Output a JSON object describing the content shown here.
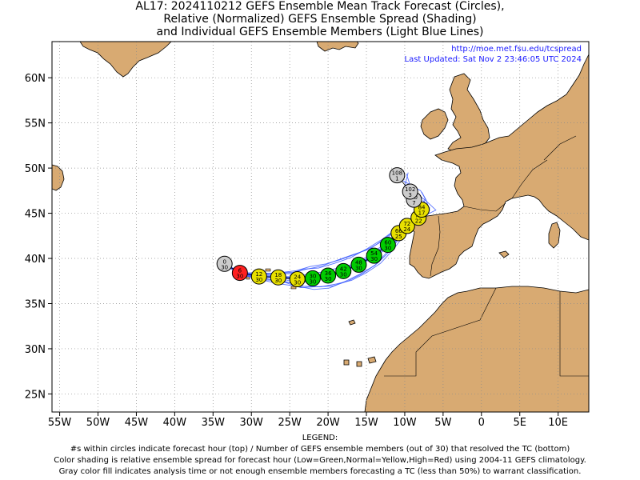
{
  "title": {
    "line1": "AL17: 2024110212 GEFS Ensemble Mean Track Forecast (Circles),",
    "line2": "Relative (Normalized) GEFS Ensemble Spread (Shading)",
    "line3": "and Individual GEFS Ensemble Members (Light Blue Lines)"
  },
  "credit": {
    "url": "http://moe.met.fsu.edu/tcspread",
    "updated": "Last Updated: Sat Nov 2 23:46:05 UTC 2024"
  },
  "axes": {
    "lon_range": [
      -56,
      14
    ],
    "lat_range": [
      23,
      64
    ],
    "lon_ticks": [
      {
        "v": -55,
        "label": "55W"
      },
      {
        "v": -50,
        "label": "50W"
      },
      {
        "v": -45,
        "label": "45W"
      },
      {
        "v": -40,
        "label": "40W"
      },
      {
        "v": -35,
        "label": "35W"
      },
      {
        "v": -30,
        "label": "30W"
      },
      {
        "v": -25,
        "label": "25W"
      },
      {
        "v": -20,
        "label": "20W"
      },
      {
        "v": -15,
        "label": "15W"
      },
      {
        "v": -10,
        "label": "10W"
      },
      {
        "v": -5,
        "label": "5W"
      },
      {
        "v": 0,
        "label": "0"
      },
      {
        "v": 5,
        "label": "5E"
      },
      {
        "v": 10,
        "label": "10E"
      }
    ],
    "lat_ticks": [
      {
        "v": 25,
        "label": "25N"
      },
      {
        "v": 30,
        "label": "30N"
      },
      {
        "v": 35,
        "label": "35N"
      },
      {
        "v": 40,
        "label": "40N"
      },
      {
        "v": 45,
        "label": "45N"
      },
      {
        "v": 50,
        "label": "50N"
      },
      {
        "v": 55,
        "label": "55N"
      },
      {
        "v": 60,
        "label": "60N"
      }
    ],
    "grid": true
  },
  "colors": {
    "ocean": "#ffffff",
    "land": "#d8aa72",
    "coast": "#000000",
    "member_track": "#3b5bff",
    "low_spread": "#00cc00",
    "normal_spread": "#e8e000",
    "high_spread": "#ff2020",
    "insufficient": "#cccccc",
    "grid": "#8a8a8a"
  },
  "track_points": [
    {
      "lon": -33.5,
      "lat": 39.4,
      "hour": "0",
      "members": "30",
      "cat": "gray"
    },
    {
      "lon": -31.5,
      "lat": 38.4,
      "hour": "6",
      "members": "30",
      "cat": "red"
    },
    {
      "lon": -29.0,
      "lat": 38.0,
      "hour": "12",
      "members": "30",
      "cat": "yellow"
    },
    {
      "lon": -26.5,
      "lat": 37.9,
      "hour": "18",
      "members": "30",
      "cat": "yellow"
    },
    {
      "lon": -24.0,
      "lat": 37.7,
      "hour": "24",
      "members": "30",
      "cat": "yellow"
    },
    {
      "lon": -22.0,
      "lat": 37.8,
      "hour": "30",
      "members": "30",
      "cat": "green"
    },
    {
      "lon": -20.0,
      "lat": 38.1,
      "hour": "36",
      "members": "30",
      "cat": "green"
    },
    {
      "lon": -18.0,
      "lat": 38.6,
      "hour": "42",
      "members": "30",
      "cat": "green"
    },
    {
      "lon": -16.0,
      "lat": 39.3,
      "hour": "48",
      "members": "30",
      "cat": "green"
    },
    {
      "lon": -14.0,
      "lat": 40.3,
      "hour": "54",
      "members": "30",
      "cat": "green"
    },
    {
      "lon": -12.2,
      "lat": 41.5,
      "hour": "60",
      "members": "30",
      "cat": "green"
    },
    {
      "lon": -10.8,
      "lat": 42.8,
      "hour": "66",
      "members": "25",
      "cat": "yellow"
    },
    {
      "lon": -9.7,
      "lat": 43.6,
      "hour": "72",
      "members": "24",
      "cat": "yellow"
    },
    {
      "lon": -8.2,
      "lat": 44.5,
      "hour": "78",
      "members": "22",
      "cat": "yellow"
    },
    {
      "lon": -7.8,
      "lat": 45.4,
      "hour": "84",
      "members": "17",
      "cat": "yellow"
    },
    {
      "lon": -8.8,
      "lat": 46.5,
      "hour": "90",
      "members": "7",
      "cat": "gray"
    },
    {
      "lon": -9.3,
      "lat": 47.4,
      "hour": "102",
      "members": "3",
      "cat": "gray"
    },
    {
      "lon": -11.0,
      "lat": 49.2,
      "hour": "108",
      "members": "1",
      "cat": "gray"
    }
  ],
  "legend": {
    "heading": "LEGEND:",
    "line1": "#s within circles indicate forecast hour (top) / Number of GEFS ensemble members (out of 30) that resolved the TC (bottom)",
    "line2": "Color shading is relative ensemble spread for forecast hour (Low=Green,Normal=Yellow,High=Red) using 2004-11 GEFS climatology.",
    "line3": "Gray color fill indicates analysis time or not enough ensemble members forecasting a TC (less than 50%) to warrant classification."
  }
}
